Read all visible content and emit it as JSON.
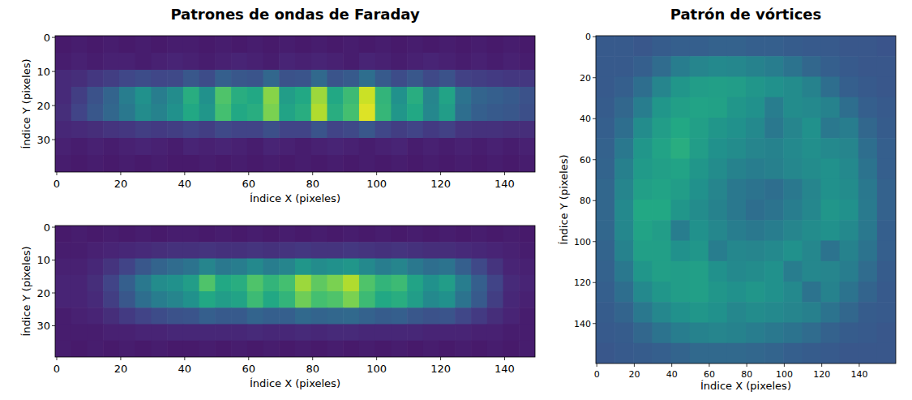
{
  "chart_data": [
    {
      "type": "heatmap",
      "title": "Patrones de ondas de Faraday",
      "xlabel": "Índice X (pixeles)",
      "ylabel": "Índice Y (pixeles)",
      "xlim": [
        -0.5,
        149.5
      ],
      "ylim": [
        39.5,
        -0.5
      ],
      "xticks": [
        0,
        20,
        40,
        60,
        80,
        100,
        120,
        140
      ],
      "yticks": [
        0,
        10,
        20,
        30
      ],
      "color": "viridis",
      "clim": [
        0,
        1
      ],
      "cells": [
        [
          0.07,
          0.08,
          0.07,
          0.08,
          0.07,
          0.08,
          0.07,
          0.08,
          0.08,
          0.07,
          0.08,
          0.07,
          0.08,
          0.07,
          0.08,
          0.07,
          0.08,
          0.07,
          0.08,
          0.07,
          0.08,
          0.07,
          0.08,
          0.07,
          0.08,
          0.07,
          0.08,
          0.07,
          0.08,
          0.07
        ],
        [
          0.08,
          0.09,
          0.08,
          0.09,
          0.09,
          0.08,
          0.09,
          0.1,
          0.09,
          0.08,
          0.09,
          0.1,
          0.09,
          0.08,
          0.1,
          0.09,
          0.1,
          0.09,
          0.08,
          0.1,
          0.09,
          0.08,
          0.09,
          0.1,
          0.09,
          0.08,
          0.09,
          0.08,
          0.09,
          0.08
        ],
        [
          0.12,
          0.13,
          0.16,
          0.18,
          0.21,
          0.23,
          0.21,
          0.22,
          0.27,
          0.23,
          0.3,
          0.27,
          0.26,
          0.33,
          0.25,
          0.26,
          0.34,
          0.26,
          0.28,
          0.36,
          0.28,
          0.23,
          0.27,
          0.22,
          0.25,
          0.19,
          0.18,
          0.17,
          0.16,
          0.16
        ],
        [
          0.12,
          0.18,
          0.25,
          0.32,
          0.42,
          0.5,
          0.42,
          0.48,
          0.62,
          0.5,
          0.72,
          0.62,
          0.6,
          0.82,
          0.55,
          0.6,
          0.85,
          0.6,
          0.68,
          0.92,
          0.65,
          0.5,
          0.62,
          0.45,
          0.58,
          0.38,
          0.32,
          0.3,
          0.28,
          0.25
        ],
        [
          0.13,
          0.2,
          0.27,
          0.33,
          0.4,
          0.48,
          0.44,
          0.5,
          0.6,
          0.52,
          0.7,
          0.6,
          0.62,
          0.8,
          0.58,
          0.62,
          0.88,
          0.62,
          0.7,
          0.95,
          0.66,
          0.52,
          0.6,
          0.46,
          0.55,
          0.36,
          0.3,
          0.28,
          0.27,
          0.24
        ],
        [
          0.11,
          0.12,
          0.13,
          0.15,
          0.16,
          0.18,
          0.17,
          0.18,
          0.2,
          0.18,
          0.22,
          0.2,
          0.2,
          0.24,
          0.2,
          0.2,
          0.26,
          0.2,
          0.22,
          0.27,
          0.21,
          0.18,
          0.2,
          0.17,
          0.19,
          0.15,
          0.14,
          0.14,
          0.13,
          0.13
        ],
        [
          0.09,
          0.08,
          0.09,
          0.08,
          0.09,
          0.1,
          0.09,
          0.08,
          0.1,
          0.09,
          0.1,
          0.09,
          0.08,
          0.1,
          0.09,
          0.08,
          0.09,
          0.1,
          0.09,
          0.08,
          0.09,
          0.1,
          0.08,
          0.09,
          0.08,
          0.09,
          0.08,
          0.09,
          0.08,
          0.09
        ],
        [
          0.08,
          0.07,
          0.08,
          0.07,
          0.08,
          0.07,
          0.08,
          0.07,
          0.07,
          0.08,
          0.07,
          0.08,
          0.07,
          0.08,
          0.07,
          0.08,
          0.07,
          0.08,
          0.07,
          0.08,
          0.07,
          0.08,
          0.07,
          0.08,
          0.07,
          0.08,
          0.07,
          0.08,
          0.07,
          0.08
        ]
      ]
    },
    {
      "type": "heatmap",
      "xlabel": "Índice X (pixeles)",
      "ylabel": "Índice Y (pixeles)",
      "xlim": [
        -0.5,
        149.5
      ],
      "ylim": [
        39.5,
        -0.5
      ],
      "xticks": [
        0,
        20,
        40,
        60,
        80,
        100,
        120,
        140
      ],
      "yticks": [
        0,
        10,
        20,
        30
      ],
      "color": "viridis",
      "clim": [
        0,
        1
      ],
      "cells": [
        [
          0.07,
          0.08,
          0.07,
          0.08,
          0.07,
          0.08,
          0.07,
          0.08,
          0.08,
          0.07,
          0.08,
          0.07,
          0.08,
          0.07,
          0.08,
          0.07,
          0.08,
          0.07,
          0.08,
          0.07,
          0.08,
          0.07,
          0.08,
          0.07,
          0.08,
          0.07,
          0.08,
          0.07,
          0.08,
          0.07
        ],
        [
          0.08,
          0.08,
          0.09,
          0.1,
          0.11,
          0.12,
          0.13,
          0.14,
          0.14,
          0.15,
          0.14,
          0.14,
          0.15,
          0.14,
          0.15,
          0.16,
          0.15,
          0.15,
          0.16,
          0.15,
          0.14,
          0.15,
          0.14,
          0.13,
          0.13,
          0.12,
          0.11,
          0.1,
          0.09,
          0.08
        ],
        [
          0.09,
          0.09,
          0.11,
          0.15,
          0.2,
          0.27,
          0.32,
          0.35,
          0.38,
          0.45,
          0.4,
          0.42,
          0.47,
          0.42,
          0.45,
          0.52,
          0.48,
          0.5,
          0.52,
          0.47,
          0.42,
          0.45,
          0.4,
          0.36,
          0.38,
          0.3,
          0.22,
          0.15,
          0.1,
          0.09
        ],
        [
          0.1,
          0.1,
          0.13,
          0.2,
          0.3,
          0.4,
          0.48,
          0.5,
          0.55,
          0.72,
          0.6,
          0.62,
          0.72,
          0.65,
          0.7,
          0.85,
          0.75,
          0.8,
          0.88,
          0.72,
          0.65,
          0.68,
          0.58,
          0.5,
          0.55,
          0.42,
          0.3,
          0.2,
          0.12,
          0.1
        ],
        [
          0.1,
          0.1,
          0.12,
          0.18,
          0.27,
          0.36,
          0.42,
          0.45,
          0.5,
          0.6,
          0.55,
          0.58,
          0.68,
          0.6,
          0.65,
          0.78,
          0.7,
          0.72,
          0.8,
          0.68,
          0.6,
          0.62,
          0.55,
          0.47,
          0.5,
          0.38,
          0.28,
          0.18,
          0.11,
          0.09
        ],
        [
          0.08,
          0.09,
          0.1,
          0.13,
          0.17,
          0.2,
          0.23,
          0.25,
          0.26,
          0.3,
          0.28,
          0.28,
          0.32,
          0.3,
          0.3,
          0.34,
          0.32,
          0.33,
          0.34,
          0.31,
          0.29,
          0.3,
          0.27,
          0.25,
          0.26,
          0.21,
          0.17,
          0.13,
          0.1,
          0.08
        ],
        [
          0.08,
          0.08,
          0.08,
          0.09,
          0.09,
          0.1,
          0.1,
          0.11,
          0.11,
          0.11,
          0.11,
          0.11,
          0.12,
          0.11,
          0.11,
          0.12,
          0.11,
          0.12,
          0.12,
          0.11,
          0.11,
          0.11,
          0.11,
          0.1,
          0.1,
          0.1,
          0.09,
          0.09,
          0.08,
          0.08
        ],
        [
          0.08,
          0.07,
          0.08,
          0.07,
          0.08,
          0.07,
          0.08,
          0.07,
          0.07,
          0.08,
          0.07,
          0.08,
          0.07,
          0.08,
          0.07,
          0.08,
          0.07,
          0.08,
          0.07,
          0.08,
          0.07,
          0.08,
          0.07,
          0.08,
          0.07,
          0.08,
          0.07,
          0.08,
          0.07,
          0.08
        ]
      ]
    },
    {
      "type": "heatmap",
      "title": "Patrón de vórtices",
      "xlabel": "Índice X (pixeles)",
      "ylabel": "Índice Y (pixeles)",
      "xlim": [
        -0.5,
        159.5
      ],
      "ylim": [
        159.5,
        -0.5
      ],
      "xticks": [
        0,
        20,
        40,
        60,
        80,
        100,
        120,
        140
      ],
      "yticks": [
        0,
        20,
        40,
        60,
        80,
        100,
        120,
        140
      ],
      "color": "viridis",
      "clim": [
        0,
        1
      ],
      "cells": [
        [
          0.28,
          0.28,
          0.27,
          0.29,
          0.3,
          0.3,
          0.31,
          0.31,
          0.3,
          0.3,
          0.29,
          0.28,
          0.28,
          0.27,
          0.27,
          0.26
        ],
        [
          0.28,
          0.28,
          0.3,
          0.35,
          0.42,
          0.45,
          0.47,
          0.46,
          0.44,
          0.42,
          0.38,
          0.33,
          0.3,
          0.28,
          0.27,
          0.27
        ],
        [
          0.28,
          0.3,
          0.36,
          0.45,
          0.52,
          0.55,
          0.56,
          0.55,
          0.52,
          0.5,
          0.48,
          0.44,
          0.36,
          0.3,
          0.28,
          0.27
        ],
        [
          0.29,
          0.33,
          0.42,
          0.52,
          0.56,
          0.58,
          0.57,
          0.52,
          0.5,
          0.42,
          0.48,
          0.47,
          0.44,
          0.36,
          0.3,
          0.28
        ],
        [
          0.3,
          0.36,
          0.48,
          0.55,
          0.6,
          0.56,
          0.52,
          0.5,
          0.47,
          0.4,
          0.45,
          0.5,
          0.4,
          0.42,
          0.33,
          0.29
        ],
        [
          0.31,
          0.4,
          0.52,
          0.58,
          0.62,
          0.55,
          0.5,
          0.48,
          0.45,
          0.44,
          0.47,
          0.49,
          0.47,
          0.45,
          0.36,
          0.3
        ],
        [
          0.32,
          0.43,
          0.54,
          0.56,
          0.58,
          0.52,
          0.48,
          0.44,
          0.42,
          0.43,
          0.46,
          0.48,
          0.5,
          0.47,
          0.38,
          0.3
        ],
        [
          0.33,
          0.45,
          0.56,
          0.58,
          0.55,
          0.5,
          0.45,
          0.4,
          0.38,
          0.36,
          0.4,
          0.45,
          0.5,
          0.48,
          0.4,
          0.31
        ],
        [
          0.33,
          0.47,
          0.6,
          0.6,
          0.52,
          0.48,
          0.44,
          0.4,
          0.36,
          0.38,
          0.42,
          0.46,
          0.52,
          0.5,
          0.41,
          0.31
        ],
        [
          0.33,
          0.46,
          0.58,
          0.55,
          0.42,
          0.5,
          0.46,
          0.42,
          0.4,
          0.42,
          0.45,
          0.48,
          0.5,
          0.47,
          0.4,
          0.3
        ],
        [
          0.32,
          0.44,
          0.56,
          0.56,
          0.5,
          0.52,
          0.42,
          0.46,
          0.45,
          0.47,
          0.5,
          0.46,
          0.38,
          0.44,
          0.38,
          0.3
        ],
        [
          0.31,
          0.4,
          0.52,
          0.56,
          0.55,
          0.56,
          0.5,
          0.47,
          0.48,
          0.5,
          0.42,
          0.46,
          0.45,
          0.42,
          0.35,
          0.29
        ],
        [
          0.3,
          0.36,
          0.47,
          0.52,
          0.55,
          0.56,
          0.52,
          0.5,
          0.52,
          0.5,
          0.47,
          0.38,
          0.44,
          0.38,
          0.32,
          0.28
        ],
        [
          0.29,
          0.32,
          0.4,
          0.46,
          0.5,
          0.52,
          0.5,
          0.46,
          0.48,
          0.47,
          0.45,
          0.43,
          0.38,
          0.33,
          0.29,
          0.28
        ],
        [
          0.28,
          0.29,
          0.33,
          0.38,
          0.42,
          0.44,
          0.45,
          0.44,
          0.42,
          0.4,
          0.38,
          0.35,
          0.31,
          0.29,
          0.28,
          0.27
        ],
        [
          0.27,
          0.28,
          0.29,
          0.3,
          0.32,
          0.34,
          0.34,
          0.34,
          0.33,
          0.32,
          0.3,
          0.29,
          0.28,
          0.27,
          0.27,
          0.27
        ]
      ]
    }
  ]
}
